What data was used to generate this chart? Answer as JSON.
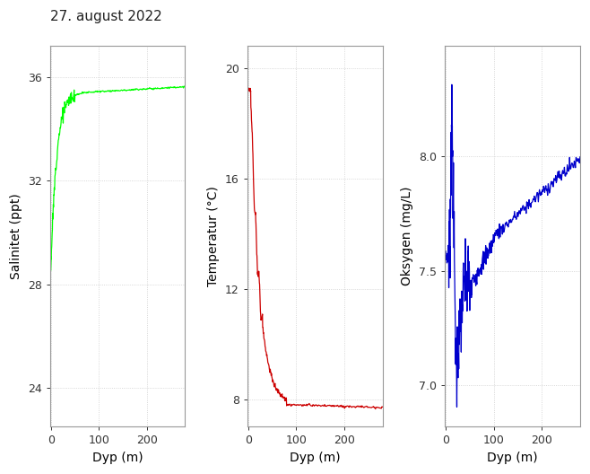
{
  "title": "27. august 2022",
  "title_fontsize": 11,
  "panels": [
    {
      "ylabel": "Salinitet (ppt)",
      "xlabel": "Dyp (m)",
      "color": "#00ff00",
      "ylim": [
        22.5,
        37.2
      ],
      "yticks": [
        24,
        28,
        32,
        36
      ],
      "xlim": [
        -2,
        280
      ],
      "xticks": [
        0,
        100,
        200
      ],
      "xticklabels": [
        "0",
        "100",
        "200"
      ]
    },
    {
      "ylabel": "Temperatur (°C)",
      "xlabel": "Dyp (m)",
      "color": "#cc0000",
      "ylim": [
        7.0,
        20.8
      ],
      "yticks": [
        8,
        12,
        16,
        20
      ],
      "xlim": [
        -2,
        280
      ],
      "xticks": [
        0,
        100,
        200
      ],
      "xticklabels": [
        "0",
        "100",
        "200"
      ]
    },
    {
      "ylabel": "Oksygen (mg/L)",
      "xlabel": "Dyp (m)",
      "color": "#0000cc",
      "ylim": [
        6.82,
        8.48
      ],
      "yticks": [
        7.0,
        7.5,
        8.0
      ],
      "xlim": [
        -2,
        280
      ],
      "xticks": [
        0,
        100,
        200
      ],
      "xticklabels": [
        "0",
        "100",
        "200"
      ]
    }
  ],
  "fig_bg": "#ffffff",
  "panel_bg": "#ffffff",
  "grid_color": "#cccccc",
  "spine_color": "#999999",
  "tick_color": "#333333",
  "label_fontsize": 10,
  "tick_fontsize": 9
}
